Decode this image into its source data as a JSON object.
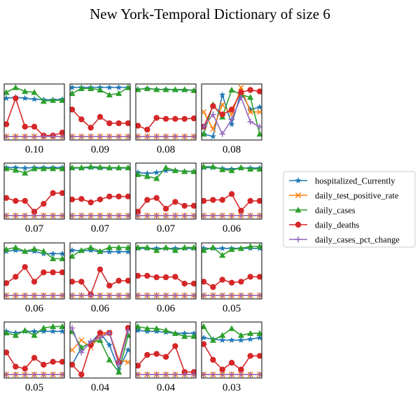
{
  "chart_data": {
    "type": "line",
    "title": "New York-Temporal Dictionary of size 6",
    "grid": false,
    "legend_position": "right",
    "x": [
      0,
      1,
      2,
      3,
      4,
      5,
      6
    ],
    "ylim": [
      0,
      1
    ],
    "series_styles": [
      {
        "name": "hospitalized_Currently",
        "color": "#1f77b4",
        "marker": "star"
      },
      {
        "name": "daily_test_positive_rate",
        "color": "#ff7f0e",
        "marker": "x"
      },
      {
        "name": "daily_cases",
        "color": "#2ca02c",
        "marker": "triangle"
      },
      {
        "name": "daily_deaths",
        "color": "#d62728",
        "marker": "circle"
      },
      {
        "name": "daily_cases_pct_change",
        "color": "#9467bd",
        "marker": "plus"
      }
    ],
    "panels": [
      {
        "label": "0.10",
        "series": [
          [
            0.78,
            0.8,
            0.78,
            0.76,
            0.75,
            0.75,
            0.76
          ],
          [
            0,
            0,
            0,
            0,
            0,
            0,
            0
          ],
          [
            0.9,
            1.0,
            0.92,
            0.9,
            0.72,
            0.74,
            0.74
          ],
          [
            0.25,
            0.78,
            0.2,
            0.2,
            0.02,
            0.02,
            0.08
          ],
          [
            0,
            0,
            0,
            0,
            0,
            0,
            0
          ]
        ]
      },
      {
        "label": "0.09",
        "series": [
          [
            1.0,
            1.0,
            1.0,
            1.0,
            1.0,
            1.0,
            1.0
          ],
          [
            0,
            0,
            0,
            0,
            0,
            0,
            0
          ],
          [
            0.88,
            0.98,
            0.98,
            0.95,
            0.85,
            0.88,
            1.0
          ],
          [
            0.55,
            0.35,
            0.18,
            0.4,
            0.27,
            0.27,
            0.27
          ],
          [
            0,
            0,
            0,
            0,
            0,
            0,
            0
          ]
        ]
      },
      {
        "label": "0.08",
        "series": [
          [
            0.96,
            0.98,
            0.96,
            0.96,
            0.95,
            0.95,
            0.94
          ],
          [
            0,
            0,
            0,
            0,
            0,
            0,
            0
          ],
          [
            0.96,
            0.98,
            0.96,
            0.96,
            0.96,
            0.96,
            0.94
          ],
          [
            0.22,
            0.14,
            0.38,
            0.36,
            0.36,
            0.36,
            0.37
          ],
          [
            0,
            0,
            0,
            0,
            0,
            0,
            0
          ]
        ]
      },
      {
        "label": "0.08",
        "series": [
          [
            0.05,
            0.0,
            0.85,
            0.25,
            0.9,
            0.55,
            0.6
          ],
          [
            0.5,
            0.15,
            0.65,
            0.45,
            1.0,
            0.5,
            0.5
          ],
          [
            0.05,
            0.65,
            0.4,
            0.95,
            0.85,
            0.8,
            0.05
          ],
          [
            0.2,
            0.62,
            0.45,
            0.55,
            0.9,
            0.95,
            0.92
          ],
          [
            0.2,
            0.45,
            0.05,
            0.35,
            0.8,
            0.3,
            0.2
          ]
        ]
      },
      {
        "label": "0.07",
        "series": [
          [
            0.98,
            0.98,
            0.97,
            0.98,
            0.98,
            0.98,
            0.98
          ],
          [
            0,
            0,
            0,
            0,
            0,
            0,
            0
          ],
          [
            0.96,
            0.93,
            0.87,
            0.96,
            0.96,
            0.96,
            0.96
          ],
          [
            0.36,
            0.3,
            0.3,
            0.08,
            0.24,
            0.46,
            0.46
          ],
          [
            0,
            0,
            0,
            0,
            0,
            0,
            0
          ]
        ]
      },
      {
        "label": "0.07",
        "series": [
          [
            0.97,
            0.97,
            0.98,
            0.97,
            0.97,
            0.97,
            0.97
          ],
          [
            0,
            0,
            0,
            0,
            0,
            0,
            0
          ],
          [
            0.98,
            0.98,
            1.0,
            0.99,
            0.98,
            0.98,
            0.98
          ],
          [
            0.33,
            0.34,
            0.27,
            0.33,
            0.39,
            0.39,
            0.39
          ],
          [
            0,
            0,
            0,
            0,
            0,
            0,
            0
          ]
        ]
      },
      {
        "label": "0.07",
        "series": [
          [
            0.88,
            0.86,
            0.88,
            0.92,
            0.92,
            0.9,
            0.9
          ],
          [
            0,
            0,
            0,
            0,
            0,
            0,
            0
          ],
          [
            0.84,
            0.8,
            0.76,
            0.98,
            0.92,
            0.9,
            0.9
          ],
          [
            0.08,
            0.32,
            0.36,
            0.14,
            0.28,
            0.2,
            0.2
          ],
          [
            0,
            0,
            0,
            0,
            0,
            0,
            0
          ]
        ]
      },
      {
        "label": "0.06",
        "series": [
          [
            0.98,
            0.98,
            0.96,
            0.95,
            0.97,
            0.97,
            0.97
          ],
          [
            0,
            0,
            0,
            0,
            0,
            0,
            0
          ],
          [
            1.0,
            1.0,
            0.94,
            0.92,
            0.98,
            0.95,
            0.95
          ],
          [
            0.3,
            0.32,
            0.32,
            0.44,
            0.1,
            0.3,
            0.3
          ],
          [
            0,
            0,
            0,
            0,
            0,
            0,
            0
          ]
        ]
      },
      {
        "label": "0.06",
        "series": [
          [
            0.9,
            0.92,
            0.9,
            0.9,
            0.85,
            0.85,
            0.85
          ],
          [
            0,
            0,
            0,
            0,
            0,
            0,
            0
          ],
          [
            0.94,
            0.98,
            0.9,
            0.95,
            0.9,
            0.75,
            0.75
          ],
          [
            0.25,
            0.38,
            0.58,
            0.28,
            0.47,
            0.47,
            0.47
          ],
          [
            0,
            0,
            0,
            0,
            0,
            0,
            0
          ]
        ]
      },
      {
        "label": "0.06",
        "series": [
          [
            0.92,
            0.91,
            0.92,
            0.89,
            0.89,
            0.89,
            0.89
          ],
          [
            0,
            0,
            0,
            0,
            0,
            0,
            0
          ],
          [
            0.8,
            0.92,
            0.98,
            0.9,
            0.98,
            0.98,
            0.98
          ],
          [
            0.28,
            0.28,
            0.02,
            0.53,
            0.2,
            0.3,
            0.3
          ],
          [
            0,
            0,
            0,
            0,
            0,
            0,
            0
          ]
        ]
      },
      {
        "label": "0.06",
        "series": [
          [
            0.96,
            0.96,
            0.96,
            0.96,
            0.96,
            0.96,
            0.96
          ],
          [
            0,
            0,
            0,
            0,
            0,
            0,
            0
          ],
          [
            0.98,
            0.98,
            0.92,
            0.98,
            0.92,
            0.98,
            0.98
          ],
          [
            0.4,
            0.4,
            0.37,
            0.37,
            0.38,
            0.24,
            0.24
          ],
          [
            0,
            0,
            0,
            0,
            0,
            0,
            0
          ]
        ]
      },
      {
        "label": "0.05",
        "series": [
          [
            0.96,
            0.96,
            0.96,
            0.96,
            0.96,
            0.96,
            0.96
          ],
          [
            0,
            0,
            0,
            0,
            0,
            0,
            0
          ],
          [
            0.92,
            0.98,
            0.82,
            0.94,
            0.96,
            1.0,
            1.0
          ],
          [
            0.28,
            0.17,
            0.32,
            0.26,
            0.28,
            0.38,
            0.38
          ],
          [
            0,
            0,
            0,
            0,
            0,
            0,
            0
          ]
        ]
      },
      {
        "label": "0.05",
        "series": [
          [
            0.88,
            0.85,
            0.88,
            0.88,
            0.88,
            0.88,
            0.88
          ],
          [
            0,
            0,
            0,
            0,
            0,
            0,
            0
          ],
          [
            0.85,
            0.8,
            0.9,
            0.8,
            0.95,
            0.98,
            0.98
          ],
          [
            0.45,
            0.16,
            0.12,
            0.34,
            0.2,
            0.26,
            0.26
          ],
          [
            0,
            0,
            0,
            0,
            0,
            0,
            0
          ]
        ]
      },
      {
        "label": "0.04",
        "series": [
          [
            0.2,
            0.55,
            0.65,
            0.85,
            0.6,
            0.1,
            0.5
          ],
          [
            0.5,
            0.7,
            0.55,
            0.8,
            0.85,
            0.3,
            0.25
          ],
          [
            0.88,
            0.55,
            0.65,
            0.7,
            0.3,
            0.05,
            0.8
          ],
          [
            0.2,
            0.0,
            0.6,
            0.85,
            0.85,
            0.25,
            0.95
          ],
          [
            0.95,
            0.45,
            0.68,
            0.75,
            0.85,
            0.2,
            0.9
          ]
        ]
      },
      {
        "label": "0.04",
        "series": [
          [
            0.9,
            0.88,
            0.88,
            0.86,
            0.84,
            0.84,
            0.84
          ],
          [
            0,
            0,
            0,
            0,
            0,
            0,
            0
          ],
          [
            0.98,
            0.94,
            0.94,
            0.9,
            0.84,
            0.78,
            0.78
          ],
          [
            0.18,
            0.4,
            0.42,
            0.36,
            0.58,
            0.05,
            0.05
          ],
          [
            0,
            0,
            0,
            0,
            0,
            0,
            0
          ]
        ]
      },
      {
        "label": "0.03",
        "series": [
          [
            0.75,
            0.72,
            0.7,
            0.7,
            0.7,
            0.72,
            0.75
          ],
          [
            0,
            0,
            0,
            0,
            0,
            0,
            0
          ],
          [
            0.98,
            0.7,
            0.8,
            0.94,
            0.8,
            0.84,
            0.84
          ],
          [
            0.62,
            0.3,
            0.1,
            0.24,
            0.1,
            0.38,
            0.38
          ],
          [
            0,
            0,
            0,
            0,
            0,
            0,
            0
          ]
        ]
      }
    ]
  }
}
